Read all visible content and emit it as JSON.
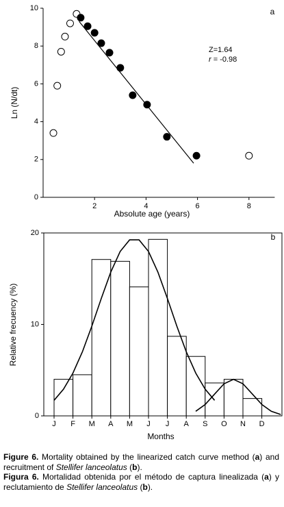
{
  "chart_data": [
    {
      "type": "scatter",
      "label": "a",
      "xlabel": "Absolute age (years)",
      "ylabel": "Ln (N/dt)",
      "xlim": [
        0,
        9
      ],
      "ylim": [
        0,
        10
      ],
      "xticks": [
        2,
        4,
        6,
        8
      ],
      "yticks": [
        0,
        2,
        4,
        6,
        8,
        10
      ],
      "annotations": [
        [
          {
            "text": "Z=1.64"
          }
        ],
        [
          {
            "text": "r",
            "italic": true
          },
          {
            "text": " = -0.98"
          }
        ]
      ],
      "series": [
        {
          "marker": "open",
          "color": "#000000",
          "x": [
            0.4,
            0.55,
            0.7,
            0.85,
            1.05,
            1.3,
            8.0
          ],
          "values": [
            3.4,
            5.9,
            7.7,
            8.5,
            9.2,
            9.7,
            2.2
          ]
        },
        {
          "marker": "filled",
          "color": "#000000",
          "x": [
            1.46,
            1.73,
            2.0,
            2.26,
            2.58,
            3.0,
            3.48,
            4.04,
            4.81,
            5.96
          ],
          "values": [
            9.5,
            9.05,
            8.7,
            8.15,
            7.65,
            6.85,
            5.4,
            4.9,
            3.2,
            2.2
          ]
        },
        {
          "marker": "line",
          "color": "#000000",
          "x": [
            1.4,
            5.85
          ],
          "values": [
            9.3,
            1.8
          ]
        }
      ]
    },
    {
      "type": "bar",
      "label": "b",
      "xlabel": "Months",
      "ylabel": "Relative frecuency (%)",
      "categories": [
        "J",
        "F",
        "M",
        "A",
        "M",
        "J",
        "J",
        "A",
        "S",
        "O",
        "N",
        "D"
      ],
      "values": [
        4.0,
        4.5,
        17.1,
        16.9,
        14.1,
        19.3,
        8.7,
        6.5,
        3.6,
        4.0,
        1.9,
        null
      ],
      "color": "#ffffff",
      "ylim": [
        0,
        20
      ],
      "yticks": [
        0,
        10,
        20
      ],
      "series": [
        {
          "color": "#000000",
          "x": [
            0,
            0.5,
            1,
            1.5,
            2,
            2.5,
            3,
            3.5,
            4,
            4.5,
            5,
            5.5,
            6,
            6.5,
            7,
            7.5,
            8,
            8.5
          ],
          "values": [
            1.7,
            2.92,
            4.68,
            7.0,
            9.81,
            12.84,
            15.71,
            17.98,
            19.24,
            19.24,
            17.98,
            15.71,
            12.84,
            9.81,
            7.0,
            4.68,
            2.92,
            1.7
          ]
        },
        {
          "color": "#000000",
          "x": [
            7.5,
            8,
            8.5,
            9,
            9.5,
            10,
            10.5,
            11,
            11.5,
            12
          ],
          "values": [
            0.5,
            1.24,
            2.38,
            3.51,
            4.0,
            3.51,
            2.38,
            1.24,
            0.5,
            0.15
          ]
        }
      ]
    }
  ],
  "caption": [
    [
      {
        "text": "Figure 6.",
        "bold": true
      },
      {
        "text": " Mortality obtained by the linearized catch curve method ("
      },
      {
        "text": "a",
        "bold": true
      },
      {
        "text": ") and recruitment of "
      },
      {
        "text": "Stellifer lanceolatus",
        "italic": true
      },
      {
        "text": " ("
      },
      {
        "text": "b",
        "bold": true
      },
      {
        "text": ")."
      }
    ],
    [
      {
        "text": "Figura 6.",
        "bold": true
      },
      {
        "text": " Mortalidad obtenida por el método de captura linealizada ("
      },
      {
        "text": "a",
        "bold": true
      },
      {
        "text": ") y reclutamiento de "
      },
      {
        "text": "Stellifer lanceolatus",
        "italic": true
      },
      {
        "text": " ("
      },
      {
        "text": "b",
        "bold": true
      },
      {
        "text": ")."
      }
    ]
  ]
}
